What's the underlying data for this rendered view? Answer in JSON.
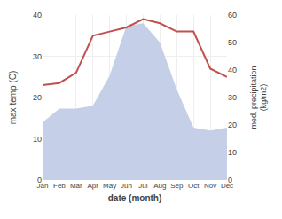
{
  "chart_data": {
    "type": "line",
    "categories": [
      "Jan",
      "Feb",
      "Mar",
      "Apr",
      "May",
      "Jun",
      "Jul",
      "Aug",
      "Sep",
      "Oct",
      "Nov",
      "Dec"
    ],
    "series": [
      {
        "type": "area",
        "axis": "y2",
        "color": "#c5cfe8",
        "values": [
          21,
          26,
          26,
          27,
          38,
          56,
          57,
          50,
          33,
          19,
          18,
          19
        ]
      },
      {
        "type": "line",
        "color": "#c0504d",
        "values": [
          23,
          23.5,
          26,
          35,
          36,
          37,
          39,
          38,
          36,
          36,
          27,
          25
        ]
      }
    ],
    "xlabel": "date (month)",
    "ylabel": "max temp (C)",
    "y2label": "med. precipitation\n(kg/m2)",
    "ylim": [
      0,
      40
    ],
    "yticks": [
      0,
      10,
      20,
      30,
      40
    ],
    "y2lim": [
      0,
      60
    ],
    "y2ticks": [
      0,
      10,
      20,
      30,
      40,
      50,
      60
    ],
    "grid": true
  }
}
